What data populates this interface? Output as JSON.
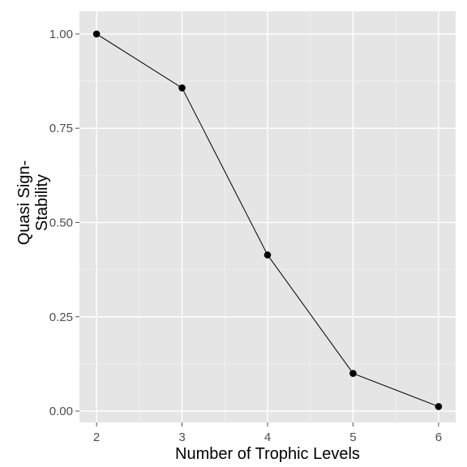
{
  "chart_data": {
    "type": "line",
    "title": "",
    "xlabel": "Number of Trophic Levels",
    "ylabel": [
      "Quasi Sign-",
      "Stability"
    ],
    "x": [
      2,
      3,
      4,
      5,
      6
    ],
    "y": [
      1.0,
      0.857,
      0.414,
      0.1,
      0.012
    ],
    "xlim": [
      1.8,
      6.2
    ],
    "ylim": [
      -0.03,
      1.06
    ],
    "x_ticks": [
      2,
      3,
      4,
      5,
      6
    ],
    "y_ticks": [
      0.0,
      0.25,
      0.5,
      0.75,
      1.0
    ],
    "x_tick_labels": [
      "2",
      "3",
      "4",
      "5",
      "6"
    ],
    "y_tick_labels": [
      "0.00",
      "0.25",
      "0.50",
      "0.75",
      "1.00"
    ],
    "grid": true,
    "legend": "none",
    "colors": {
      "panel": "#e5e5e5",
      "grid_major": "#ffffff",
      "grid_minor": "#f2f2f2",
      "line": "#000000",
      "point": "#000000",
      "tick": "#4d4d4d"
    }
  }
}
